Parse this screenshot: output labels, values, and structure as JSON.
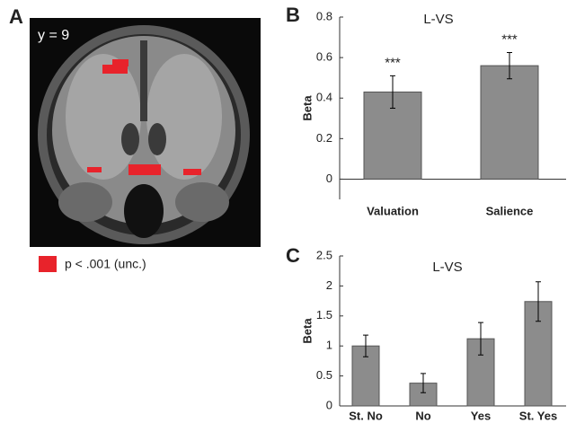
{
  "panel_a": {
    "label": "A",
    "slice": "y = 9",
    "legend": "p < .001 (unc.)"
  },
  "chart_data": [
    {
      "type": "bar",
      "label": "B",
      "title": "L-VS",
      "ylabel": "Beta",
      "categories": [
        "Valuation",
        "Salience"
      ],
      "values": [
        0.43,
        0.56
      ],
      "errors": [
        0.08,
        0.065
      ],
      "annotations": [
        "***",
        "***"
      ],
      "color": "#8c8c8c",
      "ylim": [
        -0.1,
        0.8
      ],
      "yticks": [
        0,
        0.2,
        0.4,
        0.6,
        0.8
      ]
    },
    {
      "type": "bar",
      "label": "C",
      "title": "L-VS",
      "ylabel": "Beta",
      "categories": [
        "St. No",
        "No",
        "Yes",
        "St. Yes"
      ],
      "values": [
        1.0,
        0.38,
        1.12,
        1.74
      ],
      "errors": [
        0.18,
        0.16,
        0.27,
        0.33
      ],
      "color": "#8c8c8c",
      "ylim": [
        0,
        2.5
      ],
      "yticks": [
        0,
        0.5,
        1,
        1.5,
        2,
        2.5
      ]
    }
  ]
}
